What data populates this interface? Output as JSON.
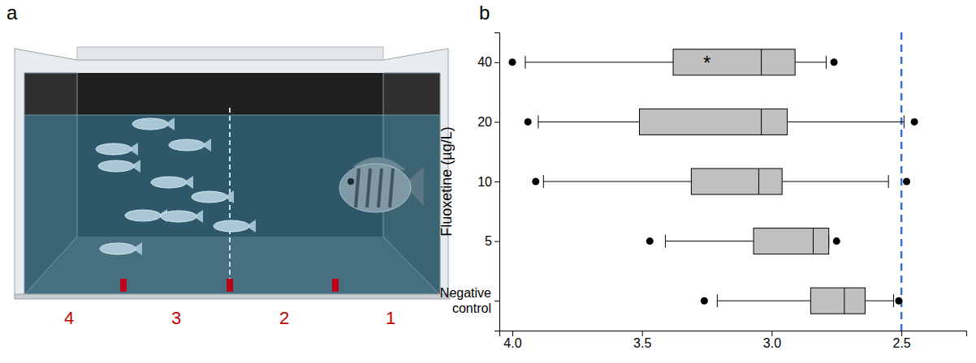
{
  "diagram": {
    "panel_label": "a",
    "zone_labels": [
      "4",
      "3",
      "2",
      "1"
    ]
  },
  "chart_data": {
    "type": "box",
    "panel_label": "b",
    "orientation": "horizontal",
    "y_label": "Fluoxetine (µg/L)",
    "categories": [
      "40",
      "20",
      "10",
      "5",
      "Negative control"
    ],
    "boxes": [
      {
        "min": 2.79,
        "q1": 2.91,
        "median": 3.04,
        "q3": 3.38,
        "max": 3.95,
        "outliers": [
          4.0,
          2.76
        ]
      },
      {
        "min": 2.49,
        "q1": 2.94,
        "median": 3.04,
        "q3": 3.51,
        "max": 3.9,
        "outliers": [
          3.94,
          2.45
        ]
      },
      {
        "min": 2.55,
        "q1": 2.96,
        "median": 3.05,
        "q3": 3.31,
        "max": 3.88,
        "outliers": [
          3.91,
          2.48
        ]
      },
      {
        "min": 2.78,
        "q1": 2.78,
        "median": 2.84,
        "q3": 3.07,
        "max": 3.41,
        "outliers": [
          3.47,
          2.75
        ]
      },
      {
        "min": 2.53,
        "q1": 2.64,
        "median": 2.72,
        "q3": 2.85,
        "max": 3.21,
        "outliers": [
          3.26,
          2.51
        ]
      }
    ],
    "color": "#c0c0c0",
    "xlim": [
      4.05,
      2.25
    ],
    "xticks": [
      {
        "value": 4.0,
        "label": "4.0"
      },
      3.5,
      {
        "value": 3.0,
        "label": "3.0"
      },
      2.5
    ],
    "reference_line": {
      "x": 2.5,
      "color": "#3a6fd8",
      "line_style": "dashed"
    },
    "annotations": [
      {
        "text": "*",
        "category": "40",
        "x": 3.25
      }
    ],
    "grid": false
  }
}
